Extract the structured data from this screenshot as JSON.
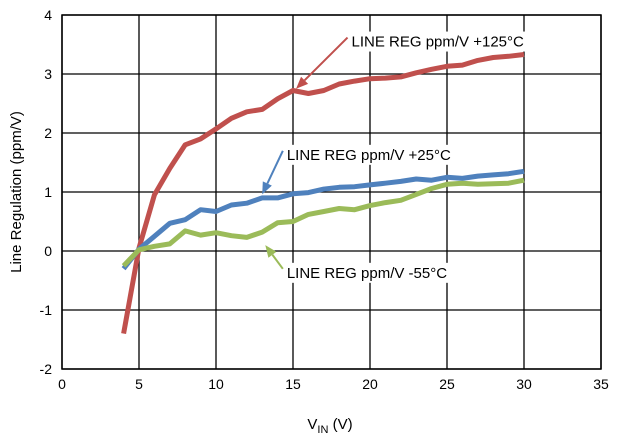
{
  "chart_data": {
    "type": "line",
    "title": "",
    "xlabel_main": "V",
    "xlabel_sub": "IN",
    "xlabel_unit": " (V)",
    "ylabel": "Line Regulation (ppm/V)",
    "xlim": [
      0,
      35
    ],
    "ylim": [
      -2,
      4
    ],
    "xticks": [
      0,
      5,
      10,
      15,
      20,
      25,
      30,
      35
    ],
    "yticks": [
      -2,
      -1,
      0,
      1,
      2,
      3,
      4
    ],
    "grid": true,
    "legend": "none",
    "series": [
      {
        "name": "LINE REG ppm/V +125°C",
        "color": "#c0504d",
        "x": [
          4,
          5,
          6,
          7,
          8,
          9,
          10,
          11,
          12,
          13,
          14,
          15,
          16,
          17,
          18,
          19,
          20,
          21,
          22,
          23,
          24,
          25,
          26,
          27,
          28,
          29,
          30
        ],
        "y": [
          -1.4,
          0.05,
          0.95,
          1.4,
          1.8,
          1.9,
          2.07,
          2.25,
          2.36,
          2.4,
          2.58,
          2.72,
          2.67,
          2.72,
          2.83,
          2.88,
          2.92,
          2.93,
          2.95,
          3.02,
          3.08,
          3.13,
          3.15,
          3.23,
          3.28,
          3.3,
          3.33
        ]
      },
      {
        "name": "LINE REG ppm/V +25°C",
        "color": "#4f81bd",
        "x": [
          4,
          5,
          6,
          7,
          8,
          9,
          10,
          11,
          12,
          13,
          14,
          15,
          16,
          17,
          18,
          19,
          20,
          21,
          22,
          23,
          24,
          25,
          26,
          27,
          28,
          29,
          30
        ],
        "y": [
          -0.3,
          0.03,
          0.25,
          0.47,
          0.53,
          0.7,
          0.67,
          0.78,
          0.81,
          0.9,
          0.9,
          0.97,
          0.99,
          1.05,
          1.08,
          1.09,
          1.12,
          1.15,
          1.18,
          1.22,
          1.2,
          1.25,
          1.23,
          1.27,
          1.29,
          1.31,
          1.35
        ]
      },
      {
        "name": "LINE REG ppm/V -55°C",
        "color": "#9bbb59",
        "x": [
          4,
          5,
          6,
          7,
          8,
          9,
          10,
          11,
          12,
          13,
          14,
          15,
          16,
          17,
          18,
          19,
          20,
          21,
          22,
          23,
          24,
          25,
          26,
          27,
          28,
          29,
          30
        ],
        "y": [
          -0.25,
          0.02,
          0.08,
          0.12,
          0.34,
          0.27,
          0.31,
          0.26,
          0.23,
          0.32,
          0.48,
          0.5,
          0.62,
          0.67,
          0.72,
          0.7,
          0.77,
          0.82,
          0.86,
          0.96,
          1.06,
          1.13,
          1.15,
          1.13,
          1.14,
          1.15,
          1.2
        ]
      }
    ],
    "annotations": [
      {
        "text": "LINE REG ppm/V +125°C",
        "x": 15.2,
        "y": 2.75,
        "text_x": 18.8,
        "text_y": 3.55
      },
      {
        "text": "LINE REG ppm/V +25°C",
        "x": 13.0,
        "y": 0.96,
        "text_x": 14.6,
        "text_y": 1.63
      },
      {
        "text": "LINE REG ppm/V -55°C",
        "x": 13.2,
        "y": 0.1,
        "text_x": 14.6,
        "text_y": -0.37
      }
    ]
  }
}
